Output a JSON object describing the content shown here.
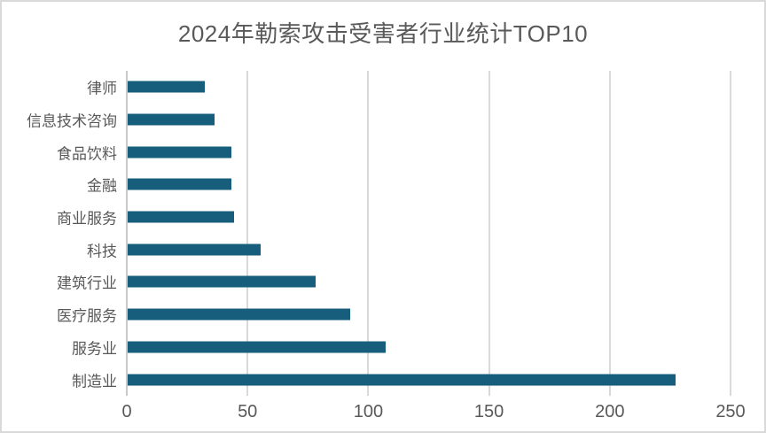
{
  "chart_data": {
    "type": "bar",
    "orientation": "horizontal",
    "title": "2024年勒索攻击受害者行业统计TOP10",
    "categories": [
      "律师",
      "信息技术咨询",
      "食品饮料",
      "金融",
      "商业服务",
      "科技",
      "建筑行业",
      "医疗服务",
      "服务业",
      "制造业"
    ],
    "values": [
      32,
      36,
      43,
      43,
      44,
      55,
      78,
      92,
      107,
      227
    ],
    "xlabel": "",
    "ylabel": "",
    "xlim": [
      0,
      250
    ],
    "xticks": [
      0,
      50,
      100,
      150,
      200,
      250
    ],
    "grid": true,
    "legend": false,
    "colors": {
      "bar": "#175E7D",
      "text": "#595959",
      "gridline": "#D9D9D9",
      "axis_line": "#C9C9C9",
      "border": "#D9D9D9",
      "background": "#FFFFFF"
    }
  }
}
